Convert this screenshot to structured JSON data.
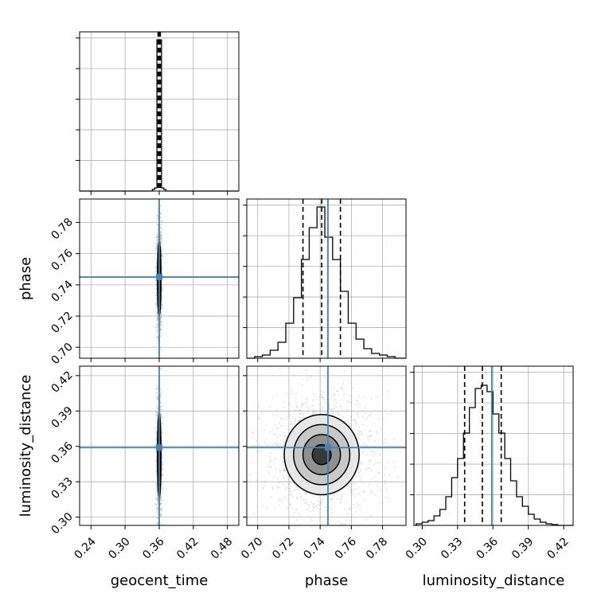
{
  "colors": {
    "truth": "#4682b4",
    "ink": "#000000",
    "grid": "#b0b0b0",
    "scatter": "#9a9a9a"
  },
  "chart_data": {
    "type": "corner",
    "grid": true,
    "parameters": [
      {
        "name": "geocent_time",
        "range": [
          0.22,
          0.5
        ],
        "ticks": [
          "0.24",
          "0.30",
          "0.36",
          "0.42",
          "0.48"
        ],
        "tick_values": [
          0.24,
          0.3,
          0.36,
          0.42,
          0.48
        ],
        "truth": 0.36,
        "quantiles": [
          0.358,
          0.36,
          0.362
        ]
      },
      {
        "name": "phase",
        "range": [
          0.693,
          0.795
        ],
        "ticks": [
          "0.70",
          "0.72",
          "0.74",
          "0.76",
          "0.78"
        ],
        "tick_values": [
          0.7,
          0.72,
          0.74,
          0.76,
          0.78
        ],
        "truth": 0.745,
        "quantiles": [
          0.729,
          0.741,
          0.753
        ]
      },
      {
        "name": "luminosity_distance",
        "range": [
          0.293,
          0.428
        ],
        "ticks": [
          "0.30",
          "0.33",
          "0.36",
          "0.39",
          "0.42"
        ],
        "tick_values": [
          0.3,
          0.33,
          0.36,
          0.39,
          0.42
        ],
        "truth": 0.359,
        "quantiles": [
          0.336,
          0.351,
          0.367
        ]
      }
    ],
    "histograms": {
      "geocent_time": {
        "bin_edges": [
          0.348,
          0.352,
          0.356,
          0.36,
          0.364,
          0.368,
          0.372
        ],
        "counts": [
          0.01,
          0.02,
          0.95,
          0.95,
          0.02,
          0.01
        ]
      },
      "phase": {
        "bin_edges": [
          0.698,
          0.703,
          0.708,
          0.713,
          0.718,
          0.723,
          0.728,
          0.733,
          0.738,
          0.743,
          0.748,
          0.753,
          0.758,
          0.763,
          0.768,
          0.773,
          0.778,
          0.783,
          0.788
        ],
        "counts": [
          0.01,
          0.02,
          0.05,
          0.1,
          0.22,
          0.38,
          0.62,
          0.82,
          0.95,
          0.76,
          0.62,
          0.42,
          0.22,
          0.12,
          0.06,
          0.03,
          0.02,
          0.01
        ]
      },
      "luminosity_distance": {
        "bin_edges": [
          0.295,
          0.3,
          0.305,
          0.31,
          0.315,
          0.32,
          0.325,
          0.33,
          0.335,
          0.34,
          0.345,
          0.35,
          0.355,
          0.36,
          0.365,
          0.37,
          0.375,
          0.38,
          0.385,
          0.39,
          0.395,
          0.4,
          0.405,
          0.41,
          0.415
        ],
        "counts": [
          0.01,
          0.02,
          0.03,
          0.06,
          0.1,
          0.18,
          0.3,
          0.42,
          0.58,
          0.74,
          0.86,
          0.88,
          0.84,
          0.7,
          0.58,
          0.42,
          0.28,
          0.18,
          0.12,
          0.07,
          0.04,
          0.02,
          0.01,
          0.005
        ]
      }
    },
    "pairs": [
      {
        "x": "geocent_time",
        "y": "phase",
        "center": [
          0.36,
          0.744
        ],
        "sigma": [
          0.0015,
          0.012
        ],
        "contour_scales": [
          0.5,
          1.0,
          1.5,
          2.0
        ]
      },
      {
        "x": "geocent_time",
        "y": "luminosity_distance",
        "center": [
          0.36,
          0.352
        ],
        "sigma": [
          0.0015,
          0.018
        ],
        "contour_scales": [
          0.5,
          1.0,
          1.5,
          2.0
        ]
      },
      {
        "x": "phase",
        "y": "luminosity_distance",
        "center": [
          0.741,
          0.353
        ],
        "sigma": [
          0.012,
          0.017
        ],
        "contour_scales": [
          0.5,
          1.0,
          1.5,
          2.0
        ]
      }
    ]
  }
}
